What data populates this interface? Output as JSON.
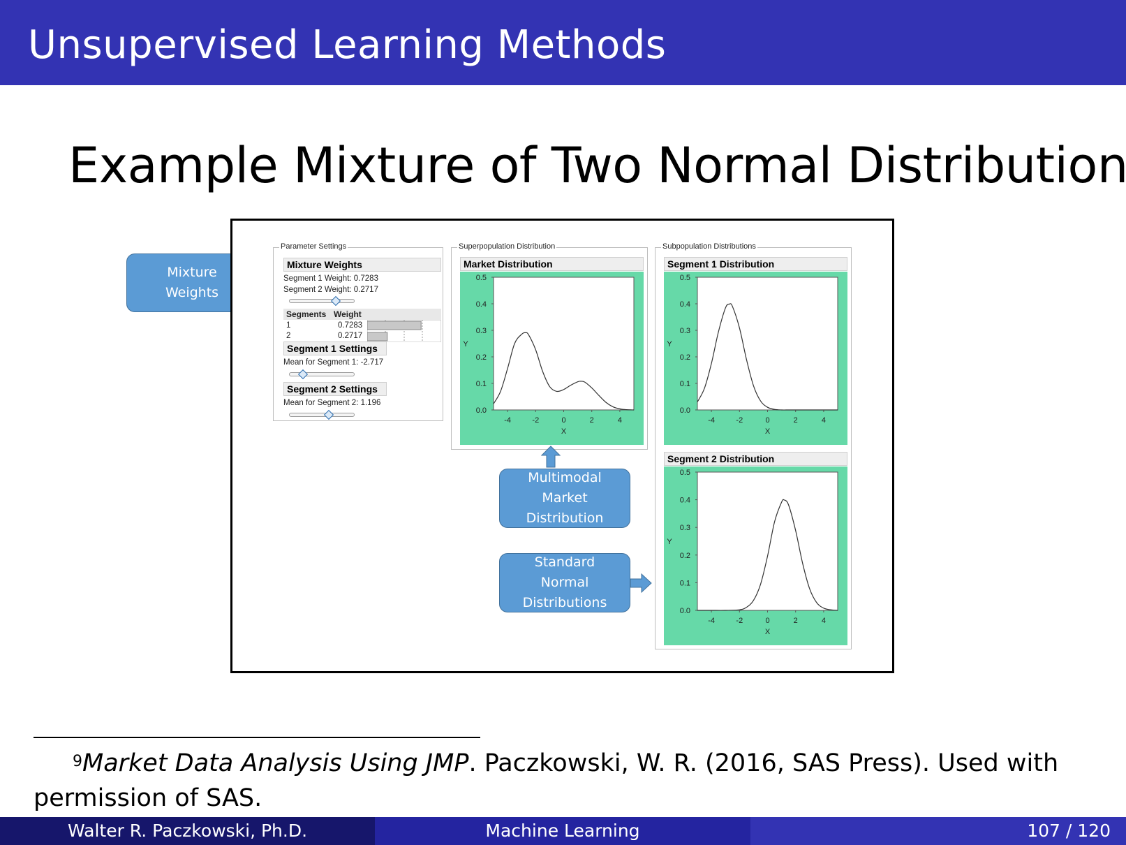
{
  "header": {
    "title": "Unsupervised Learning Methods"
  },
  "slide": {
    "title": "Example Mixture of Two Normal Distributions",
    "footnote_mark": "9"
  },
  "panel_labels": {
    "parameter_settings": "Parameter Settings",
    "superpopulation": "Superpopulation Distribution",
    "subpopulation": "Subpopulation Distributions"
  },
  "params": {
    "mixture_header": "Mixture Weights",
    "seg1_weight_text": "Segment 1 Weight: 0.7283",
    "seg2_weight_text": "Segment 2 Weight: 0.2717",
    "mixture_slider_value": 0.7283,
    "table": {
      "col_segments": "Segments",
      "col_weight": "Weight",
      "rows": [
        {
          "segment": "1",
          "weight": "0.7283",
          "value": 0.7283
        },
        {
          "segment": "2",
          "weight": "0.2717",
          "value": 0.2717
        }
      ]
    },
    "seg1_header": "Segment 1 Settings",
    "seg1_mean_text": "Mean for Segment 1: -2.717",
    "seg1_mean": -2.717,
    "seg2_header": "Segment 2 Settings",
    "seg2_mean_text": "Mean for Segment 2: 1.196",
    "seg2_mean": 1.196
  },
  "callouts": {
    "mixture": "Mixture\nWeights",
    "multimodal": "Multimodal\nMarket\nDistribution",
    "standard": "Standard\nNormal\nDistributions"
  },
  "chart_data": [
    {
      "type": "line",
      "title": "Market Distribution",
      "xlabel": "X",
      "ylabel": "Y",
      "xlim": [
        -5,
        5
      ],
      "ylim": [
        0,
        0.5
      ],
      "xticks": [
        "-4",
        "-2",
        "0",
        "2",
        "4"
      ],
      "yticks": [
        "0.0",
        "0.1",
        "0.2",
        "0.3",
        "0.4",
        "0.5"
      ],
      "series": [
        {
          "x": [
            -5,
            -4.5,
            -4,
            -3.5,
            -3,
            -2.717,
            -2.5,
            -2,
            -1.5,
            -1,
            -0.5,
            0,
            0.5,
            1,
            1.196,
            1.5,
            2,
            2.5,
            3,
            3.5,
            4,
            4.5,
            5
          ],
          "y": [
            0.023,
            0.07,
            0.156,
            0.25,
            0.285,
            0.291,
            0.283,
            0.227,
            0.145,
            0.088,
            0.07,
            0.077,
            0.093,
            0.106,
            0.108,
            0.105,
            0.083,
            0.055,
            0.029,
            0.012,
            0.004,
            0.001,
            0.0
          ]
        }
      ],
      "legend": "none"
    },
    {
      "type": "line",
      "title": "Segment 1 Distribution",
      "xlabel": "X",
      "ylabel": "Y",
      "xlim": [
        -5,
        5
      ],
      "ylim": [
        0,
        0.5
      ],
      "xticks": [
        "-4",
        "-2",
        "0",
        "2",
        "4"
      ],
      "yticks": [
        "0.0",
        "0.1",
        "0.2",
        "0.3",
        "0.4",
        "0.5"
      ],
      "series": [
        {
          "x": [
            -5,
            -4.5,
            -4,
            -3.5,
            -3,
            -2.717,
            -2.5,
            -2,
            -1.5,
            -1,
            -0.5,
            0,
            0.5,
            1,
            1.5,
            2,
            3,
            4,
            5
          ],
          "y": [
            0.03,
            0.081,
            0.175,
            0.294,
            0.384,
            0.399,
            0.39,
            0.309,
            0.19,
            0.091,
            0.034,
            0.01,
            0.002,
            0.0,
            0.0,
            0.0,
            0.0,
            0.0,
            0.0
          ]
        }
      ],
      "legend": "none"
    },
    {
      "type": "line",
      "title": "Segment 2 Distribution",
      "xlabel": "X",
      "ylabel": "Y",
      "xlim": [
        -5,
        5
      ],
      "ylim": [
        0,
        0.5
      ],
      "xticks": [
        "-4",
        "-2",
        "0",
        "2",
        "4"
      ],
      "yticks": [
        "0.0",
        "0.1",
        "0.2",
        "0.3",
        "0.4",
        "0.5"
      ],
      "series": [
        {
          "x": [
            -5,
            -4,
            -3,
            -2,
            -1.5,
            -1,
            -0.5,
            0,
            0.5,
            1,
            1.196,
            1.5,
            2,
            2.5,
            3,
            3.5,
            4,
            4.5,
            5
          ],
          "y": [
            0.0,
            0.0,
            0.0,
            0.002,
            0.011,
            0.036,
            0.094,
            0.196,
            0.32,
            0.391,
            0.399,
            0.381,
            0.289,
            0.17,
            0.078,
            0.028,
            0.008,
            0.002,
            0.0
          ]
        }
      ],
      "legend": "none"
    }
  ],
  "footnote": {
    "mark": "9",
    "italic": "Market Data Analysis Using JMP",
    "rest": ". Paczkowski, W. R. (2016, SAS Press). Used with permission of SAS."
  },
  "footer": {
    "author": "Walter R. Paczkowski, Ph.D.",
    "topic": "Machine Learning",
    "page": "107 / 120"
  },
  "colors": {
    "header_bg": "#3333b3",
    "footer_left": "#16166b",
    "footer_mid": "#2424a0",
    "footer_right": "#3333b3",
    "chart_bg": "#66d9a8",
    "callout": "#5b9bd5"
  }
}
